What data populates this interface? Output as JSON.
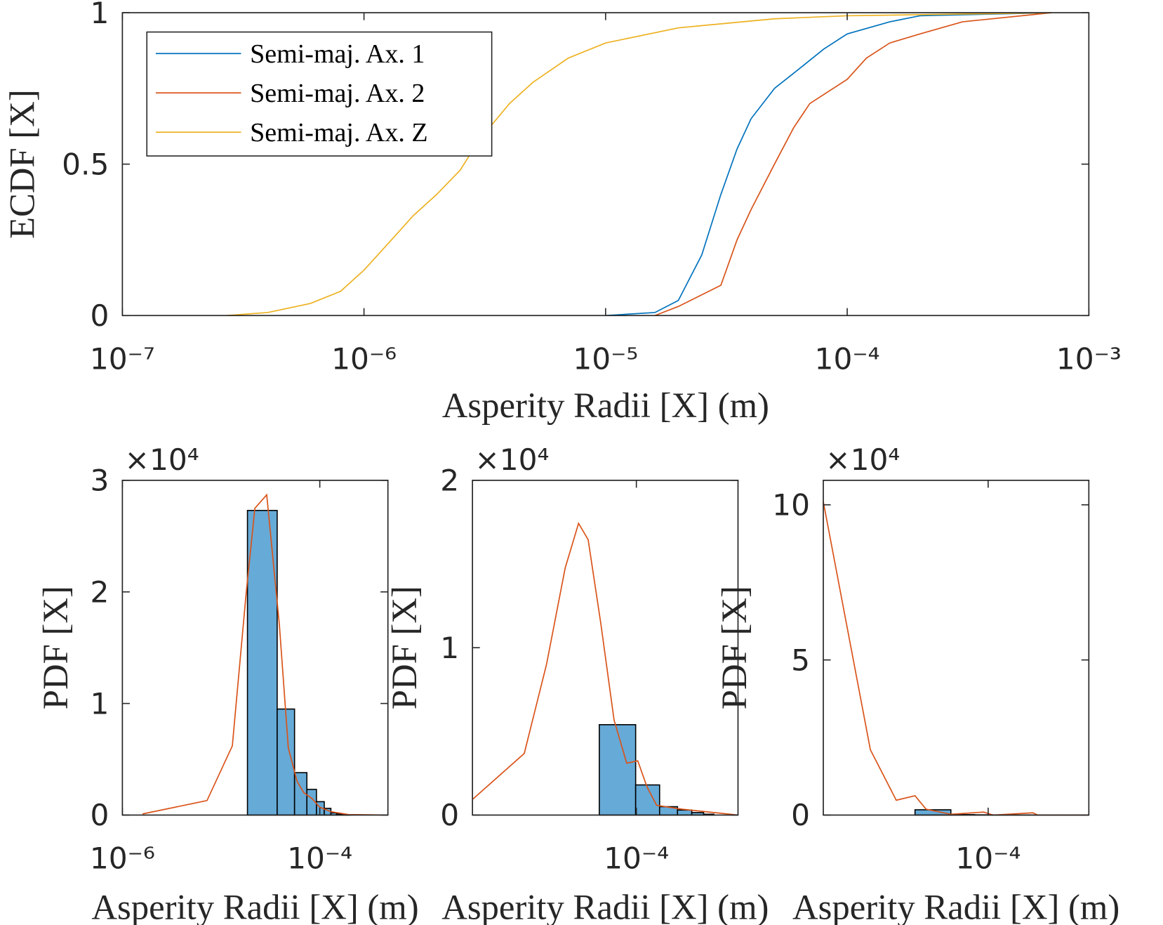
{
  "chart_data": [
    {
      "type": "line",
      "xlabel": "Asperity Radii [X] (m)",
      "ylabel": "ECDF [X]",
      "xscale": "log",
      "legend": "northwest",
      "xlim": [
        1e-07,
        0.001
      ],
      "ylim": [
        0,
        1
      ],
      "xticks": [
        {
          "value": 1e-07,
          "label": "10⁻⁷"
        },
        {
          "value": 1e-06,
          "label": "10⁻⁶"
        },
        {
          "value": 1e-05,
          "label": "10⁻⁵"
        },
        {
          "value": 0.0001,
          "label": "10⁻⁴"
        },
        {
          "value": 0.001,
          "label": "10⁻³"
        }
      ],
      "yticks": [
        0,
        0.5,
        1
      ],
      "series": [
        {
          "name": "Semi-maj.  Ax.  1",
          "color": "#0072bd",
          "x": [
            1e-05,
            1.6e-05,
            2e-05,
            2.5e-05,
            3e-05,
            3.5e-05,
            4e-05,
            5e-05,
            6e-05,
            8e-05,
            0.0001,
            0.00015,
            0.0002,
            0.0007
          ],
          "values": [
            0,
            0.01,
            0.05,
            0.2,
            0.4,
            0.55,
            0.65,
            0.75,
            0.8,
            0.88,
            0.93,
            0.97,
            0.99,
            1
          ]
        },
        {
          "name": "Semi-maj.  Ax.  2",
          "color": "#d95319",
          "x": [
            1.6e-05,
            2e-05,
            3e-05,
            3.5e-05,
            4e-05,
            5e-05,
            6e-05,
            7e-05,
            0.0001,
            0.00012,
            0.00015,
            0.0002,
            0.0003,
            0.0007
          ],
          "values": [
            0,
            0.03,
            0.1,
            0.25,
            0.35,
            0.5,
            0.62,
            0.7,
            0.78,
            0.85,
            0.9,
            0.93,
            0.97,
            1
          ]
        },
        {
          "name": "Semi-maj.  Ax.  Z",
          "color": "#edb120",
          "x": [
            2.7e-07,
            4e-07,
            6e-07,
            8e-07,
            1e-06,
            1.3e-06,
            1.6e-06,
            2e-06,
            2.5e-06,
            3e-06,
            4e-06,
            5e-06,
            7e-06,
            1e-05,
            2e-05,
            5e-05,
            0.0001,
            0.0007
          ],
          "values": [
            0,
            0.01,
            0.04,
            0.08,
            0.15,
            0.25,
            0.33,
            0.4,
            0.48,
            0.58,
            0.7,
            0.77,
            0.85,
            0.9,
            0.95,
            0.98,
            0.99,
            1
          ]
        }
      ]
    },
    {
      "type": "histogram",
      "xlabel": "Asperity Radii [X] (m)",
      "ylabel": "PDF [X]",
      "xscale": "log",
      "y_exponent_label": "×10⁴",
      "xlim": [
        1e-06,
        0.00049
      ],
      "ylim": [
        0,
        30000
      ],
      "xticks": [
        {
          "value": 1e-06,
          "label": "10⁻⁶"
        },
        {
          "value": 0.0001,
          "label": "10⁻⁴"
        }
      ],
      "yticks": [
        {
          "value": 0,
          "label": "0"
        },
        {
          "value": 10000,
          "label": "1"
        },
        {
          "value": 20000,
          "label": "2"
        },
        {
          "value": 30000,
          "label": "3"
        }
      ],
      "color": "#66aad7",
      "bins": [
        1.85e-05,
        3.7e-05,
        5.55e-05,
        7.4e-05,
        9.25e-05,
        0.000111,
        0.0001295,
        0.000148,
        0.0001665,
        0.000185,
        0.0002035
      ],
      "counts": [
        27300,
        9500,
        3800,
        2300,
        1200,
        600,
        200,
        100,
        50,
        30
      ],
      "line": {
        "color": "#d95319",
        "x": [
          1.6e-06,
          7.2e-06,
          1.3e-05,
          1.8e-05,
          2.2e-05,
          2.9e-05,
          3.9e-05,
          4.8e-05,
          5.9e-05,
          6.9e-05,
          8.3e-05,
          0.0001,
          0.00013,
          0.000195,
          0.00049
        ],
        "values": [
          100,
          1300,
          6200,
          20000,
          27500,
          28700,
          17000,
          6000,
          3000,
          2000,
          1500,
          700,
          300,
          50,
          0
        ]
      }
    },
    {
      "type": "histogram",
      "xlabel": "Asperity Radii [X] (m)",
      "ylabel": "PDF [X]",
      "xscale": "log",
      "y_exponent_label": "×10⁴",
      "xlim": [
        1e-05,
        0.000417
      ],
      "ylim": [
        0,
        20000
      ],
      "xticks": [
        {
          "value": 0.0001,
          "label": "10⁻⁴"
        }
      ],
      "yticks": [
        {
          "value": 0,
          "label": "0"
        },
        {
          "value": 10000,
          "label": "1"
        },
        {
          "value": 20000,
          "label": "2"
        }
      ],
      "color": "#66aad7",
      "bins": [
        5.94e-05,
        9.9e-05,
        0.0001386,
        0.0001782,
        0.0002178,
        0.0002574,
        0.000297
      ],
      "counts": [
        5400,
        1800,
        500,
        300,
        150,
        50
      ],
      "line": {
        "color": "#d95319",
        "x": [
          1e-05,
          2.07e-05,
          2.83e-05,
          3.68e-05,
          4.44e-05,
          5.08e-05,
          6.07e-05,
          7.31e-05,
          8.73e-05,
          0.000102,
          0.000116,
          0.000133,
          0.00019,
          0.000417
        ],
        "values": [
          930,
          3680,
          9000,
          14770,
          17430,
          16450,
          11440,
          5680,
          3100,
          3240,
          1690,
          580,
          350,
          0
        ]
      }
    },
    {
      "type": "histogram",
      "xlabel": "Asperity Radii [X] (m)",
      "ylabel": "PDF [X]",
      "xscale": "log",
      "y_exponent_label": "×10⁴",
      "xlim": [
        1e-05,
        0.000408
      ],
      "ylim": [
        0,
        107900
      ],
      "xticks": [
        {
          "value": 0.0001,
          "label": "10⁻⁴"
        }
      ],
      "yticks": [
        {
          "value": 0,
          "label": "0"
        },
        {
          "value": 50000,
          "label": "5"
        },
        {
          "value": 100000,
          "label": "10"
        }
      ],
      "color": "#66aad7",
      "bins": [
        1.26e-05,
        3.6e-05,
        5.94e-05,
        8.28e-05,
        0.0001062,
        0.0001296,
        0.000153,
        0.0001764,
        0.0001998,
        0.0002232,
        0.0002466,
        0.00027,
        0.0002934,
        0.0003168,
        0.0003402,
        0.0003636,
        0.000387
      ],
      "counts": [
        0,
        1700,
        150,
        80,
        50,
        30,
        20,
        15,
        10,
        10,
        5,
        5,
        5,
        5,
        5,
        5
      ],
      "line": {
        "color": "#d95319",
        "x": [
          1e-05,
          1.93e-05,
          2.77e-05,
          3.6e-05,
          4.2e-05,
          5.94e-05,
          9.4e-05,
          0.000107,
          0.000187,
          0.0002,
          0.000408
        ],
        "values": [
          101000,
          21050,
          4780,
          6220,
          1900,
          240,
          960,
          0,
          720,
          0,
          0
        ]
      }
    }
  ]
}
